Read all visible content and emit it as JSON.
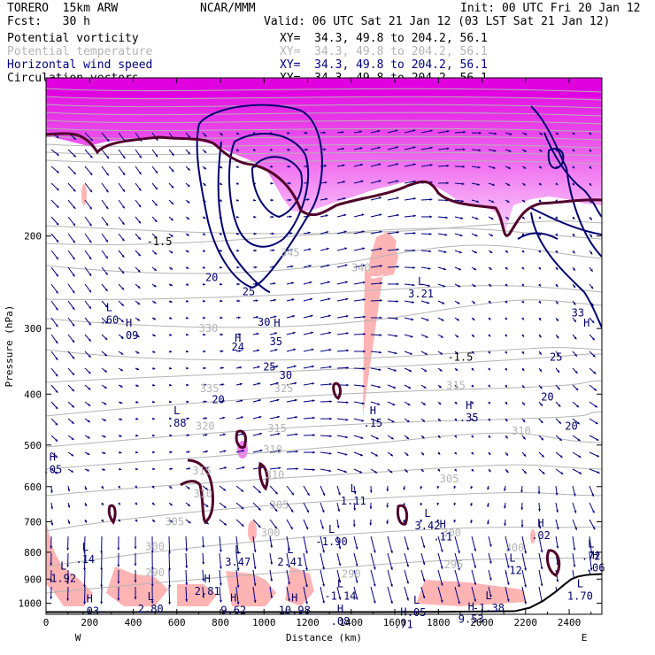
{
  "header": {
    "model": "TORERO  15km ARW",
    "org": "NCAR/MMM",
    "init": "Init: 00 UTC Fri 20 Jan 12",
    "fcst": "Fcst:   30 h",
    "valid": "Valid: 06 UTC Sat 21 Jan 12 (03 LST Sat 21 Jan 12)",
    "fields": [
      {
        "name": "Potential vorticity",
        "xy": "XY=  34.3, 49.8 to 204.2, 56.1",
        "color": "#000000"
      },
      {
        "name": "Potential temperature",
        "xy": "XY=  34.3, 49.8 to 204.2, 56.1",
        "color": "#b4b4b4"
      },
      {
        "name": "Horizontal wind speed",
        "xy": "XY=  34.3, 49.8 to 204.2, 56.1",
        "color": "#000080"
      },
      {
        "name": "Circulation vectors",
        "xy": "XY=  34.3, 49.8 to 204.2, 56.1",
        "color": "#000000"
      }
    ]
  },
  "chart_data": {
    "type": "cross-section",
    "xlabel": "Distance (km)",
    "ylabel": "Pressure (hPa)",
    "xlim": [
      0,
      2550
    ],
    "ylim": [
      1050,
      100
    ],
    "y_scale": "log",
    "x_ticks": [
      0,
      200,
      400,
      600,
      800,
      1000,
      1200,
      1400,
      1600,
      1800,
      2000,
      2200,
      2400
    ],
    "y_ticks": [
      200,
      300,
      400,
      500,
      600,
      700,
      800,
      900,
      1000
    ],
    "x_endpoints": {
      "left": "W",
      "right": "E"
    },
    "colors": {
      "pv_fill": "#e000e0",
      "pv_positive_fill": "#ffb4b4",
      "theta_contour": "#b4b4b4",
      "wind_contour": "#000070",
      "pv_contour": "#50002a",
      "vectors": "#000080",
      "terrain": "#000000"
    },
    "theta_labels": [
      {
        "x": 1445,
        "p": 230,
        "text": "340"
      },
      {
        "x": 1120,
        "p": 215,
        "text": "345"
      },
      {
        "x": 745,
        "p": 300,
        "text": "330"
      },
      {
        "x": 1090,
        "p": 390,
        "text": "325"
      },
      {
        "x": 750,
        "p": 390,
        "text": "335"
      },
      {
        "x": 1880,
        "p": 385,
        "text": "315"
      },
      {
        "x": 1060,
        "p": 465,
        "text": "315"
      },
      {
        "x": 730,
        "p": 460,
        "text": "320"
      },
      {
        "x": 2180,
        "p": 470,
        "text": "310"
      },
      {
        "x": 1040,
        "p": 510,
        "text": "310"
      },
      {
        "x": 715,
        "p": 560,
        "text": "315"
      },
      {
        "x": 1050,
        "p": 570,
        "text": "310"
      },
      {
        "x": 1850,
        "p": 580,
        "text": "305"
      },
      {
        "x": 720,
        "p": 620,
        "text": "310"
      },
      {
        "x": 1070,
        "p": 650,
        "text": "305"
      },
      {
        "x": 590,
        "p": 700,
        "text": "305"
      },
      {
        "x": 1030,
        "p": 735,
        "text": "300"
      },
      {
        "x": 1860,
        "p": 735,
        "text": "300"
      },
      {
        "x": 500,
        "p": 780,
        "text": "300"
      },
      {
        "x": 2150,
        "p": 785,
        "text": "300"
      },
      {
        "x": 1870,
        "p": 845,
        "text": "295"
      },
      {
        "x": 500,
        "p": 875,
        "text": "290"
      },
      {
        "x": 1400,
        "p": 880,
        "text": "290"
      }
    ],
    "wind_labels": [
      {
        "x": 760,
        "p": 240,
        "text": "20"
      },
      {
        "x": 930,
        "p": 255,
        "text": "25"
      },
      {
        "x": 1000,
        "p": 292,
        "text": "30"
      },
      {
        "x": 880,
        "p": 325,
        "text": "24"
      },
      {
        "x": 1055,
        "p": 318,
        "text": "35"
      },
      {
        "x": 1025,
        "p": 355,
        "text": "25"
      },
      {
        "x": 1100,
        "p": 368,
        "text": "30"
      },
      {
        "x": 790,
        "p": 410,
        "text": "20"
      },
      {
        "x": 2440,
        "p": 280,
        "text": "33"
      },
      {
        "x": 2340,
        "p": 340,
        "text": "25"
      },
      {
        "x": 2300,
        "p": 405,
        "text": "20"
      },
      {
        "x": 2410,
        "p": 460,
        "text": "20"
      }
    ],
    "pv_labels": [
      {
        "x": 520,
        "p": 205,
        "text": "-1.5"
      },
      {
        "x": 1900,
        "p": 340,
        "text": "-1.5"
      }
    ],
    "extrema": [
      {
        "x": 290,
        "p": 280,
        "kind": "L",
        "value": ".60"
      },
      {
        "x": 380,
        "p": 300,
        "kind": "H",
        "value": ".09"
      },
      {
        "x": 880,
        "p": 320,
        "kind": "H",
        "value": ""
      },
      {
        "x": 1060,
        "p": 300,
        "kind": "H",
        "value": ""
      },
      {
        "x": 1720,
        "p": 250,
        "kind": "L",
        "value": "3.21"
      },
      {
        "x": 2480,
        "p": 300,
        "kind": "H",
        "value": ""
      },
      {
        "x": 600,
        "p": 440,
        "kind": "L",
        "value": ".88"
      },
      {
        "x": 1500,
        "p": 440,
        "kind": "H",
        "value": ".15"
      },
      {
        "x": 1940,
        "p": 430,
        "kind": "H",
        "value": ".35"
      },
      {
        "x": 30,
        "p": 540,
        "kind": "H",
        "value": ".05"
      },
      {
        "x": 1410,
        "p": 620,
        "kind": "L",
        "value": "1.11"
      },
      {
        "x": 1750,
        "p": 690,
        "kind": "L",
        "value": "3.42"
      },
      {
        "x": 1820,
        "p": 725,
        "kind": "H",
        "value": ".11"
      },
      {
        "x": 1310,
        "p": 740,
        "kind": "L",
        "value": "-1.90"
      },
      {
        "x": 2270,
        "p": 720,
        "kind": "H",
        "value": ".02"
      },
      {
        "x": 2500,
        "p": 790,
        "kind": "L",
        "value": ".72"
      },
      {
        "x": 2520,
        "p": 830,
        "kind": "H",
        "value": ".06"
      },
      {
        "x": 180,
        "p": 800,
        "kind": "L",
        "value": ".14"
      },
      {
        "x": 880,
        "p": 810,
        "kind": "L",
        "value": "3.47"
      },
      {
        "x": 1120,
        "p": 810,
        "kind": "L",
        "value": "2.41"
      },
      {
        "x": 2140,
        "p": 840,
        "kind": "L",
        "value": ".12"
      },
      {
        "x": 80,
        "p": 870,
        "kind": "L",
        "value": "1.92"
      },
      {
        "x": 740,
        "p": 920,
        "kind": "H",
        "value": "2.81"
      },
      {
        "x": 1350,
        "p": 940,
        "kind": "L",
        "value": "-1.14"
      },
      {
        "x": 2450,
        "p": 940,
        "kind": "L",
        "value": "1.70"
      },
      {
        "x": 2030,
        "p": 990,
        "kind": "L",
        "value": "-1.38"
      },
      {
        "x": 480,
        "p": 995,
        "kind": "L",
        "value": "2.80"
      },
      {
        "x": 860,
        "p": 1000,
        "kind": "H",
        "value": "9.62"
      },
      {
        "x": 1140,
        "p": 1000,
        "kind": "H",
        "value": "10.98"
      },
      {
        "x": 200,
        "p": 1005,
        "kind": "H",
        "value": ".03"
      },
      {
        "x": 1700,
        "p": 1010,
        "kind": "L",
        "value": ".05"
      },
      {
        "x": 1950,
        "p": 1040,
        "kind": "H",
        "value": "9.53"
      },
      {
        "x": 1350,
        "p": 1050,
        "kind": "H",
        "value": ".08"
      },
      {
        "x": 1640,
        "p": 1065,
        "kind": "H",
        "value": ".71"
      }
    ],
    "terrain": [
      [
        0,
        1040
      ],
      [
        300,
        1040
      ],
      [
        600,
        1040
      ],
      [
        900,
        1040
      ],
      [
        1200,
        1040
      ],
      [
        1500,
        1040
      ],
      [
        1800,
        1039
      ],
      [
        2150,
        1036
      ],
      [
        2220,
        1020
      ],
      [
        2280,
        990
      ],
      [
        2340,
        950
      ],
      [
        2380,
        920
      ],
      [
        2410,
        900
      ],
      [
        2440,
        890
      ],
      [
        2470,
        885
      ],
      [
        2500,
        882
      ],
      [
        2550,
        880
      ]
    ]
  }
}
